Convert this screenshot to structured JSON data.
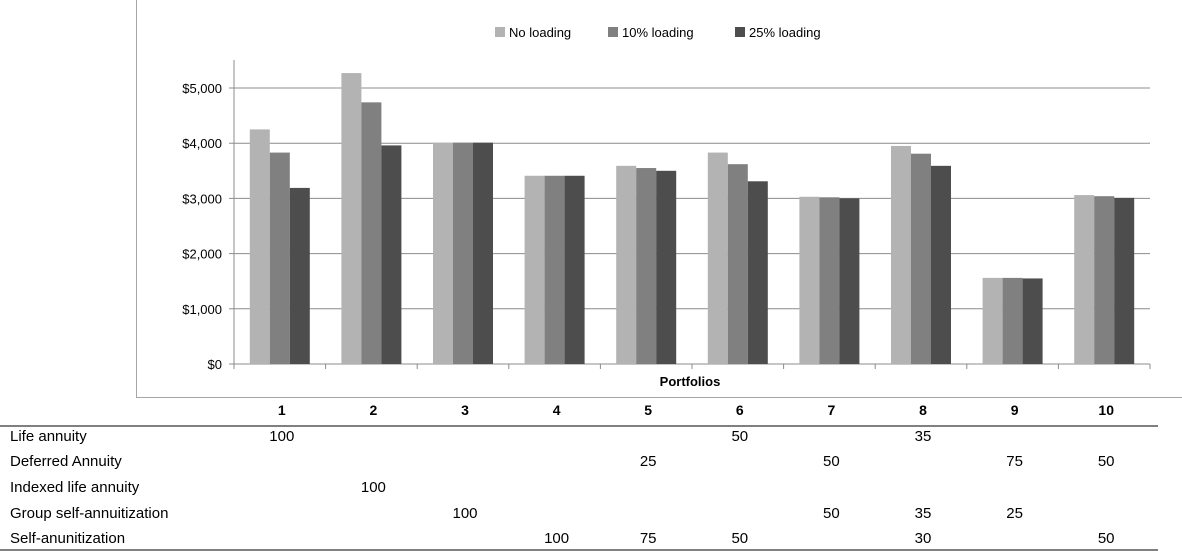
{
  "chart_data": {
    "type": "bar",
    "title": "",
    "xlabel": "Portfolios",
    "ylabel": "",
    "categories": [
      "1",
      "2",
      "3",
      "4",
      "5",
      "6",
      "7",
      "8",
      "9",
      "10"
    ],
    "series": [
      {
        "name": "No loading",
        "color": "#b3b3b3",
        "values": [
          4250,
          5270,
          4010,
          3410,
          3590,
          3830,
          3030,
          3950,
          1560,
          3060
        ]
      },
      {
        "name": "10% loading",
        "color": "#808080",
        "values": [
          3830,
          4740,
          4010,
          3410,
          3550,
          3620,
          3020,
          3810,
          1560,
          3040
        ]
      },
      {
        "name": "25% loading",
        "color": "#4d4d4d",
        "values": [
          3190,
          3960,
          4010,
          3410,
          3500,
          3310,
          3000,
          3590,
          1550,
          3010
        ]
      }
    ],
    "ylim": [
      0,
      5000
    ],
    "yticks": [
      0,
      1000,
      2000,
      3000,
      4000,
      5000
    ],
    "ytick_labels": [
      "$0",
      "$1,000",
      "$2,000",
      "$3,000",
      "$4,000",
      "$5,000"
    ],
    "grid": true,
    "legend_position": "top-center"
  },
  "table": {
    "columns": [
      "1",
      "2",
      "3",
      "4",
      "5",
      "6",
      "7",
      "8",
      "9",
      "10"
    ],
    "rows": [
      {
        "label": "Life annuity",
        "cells": [
          "100",
          "",
          "",
          "",
          "",
          "50",
          "",
          "35",
          "",
          ""
        ]
      },
      {
        "label": "Deferred Annuity",
        "cells": [
          "",
          "",
          "",
          "",
          "25",
          "",
          "50",
          "",
          "75",
          "50"
        ]
      },
      {
        "label": "Indexed life annuity",
        "cells": [
          "",
          "100",
          "",
          "",
          "",
          "",
          "",
          "",
          "",
          ""
        ]
      },
      {
        "label": "Group self-annuitization",
        "cells": [
          "",
          "",
          "100",
          "",
          "",
          "",
          "50",
          "35",
          "25",
          ""
        ]
      },
      {
        "label": "Self-anunitization",
        "cells": [
          "",
          "",
          "",
          "100",
          "75",
          "50",
          "",
          "30",
          "",
          "50"
        ]
      }
    ]
  }
}
